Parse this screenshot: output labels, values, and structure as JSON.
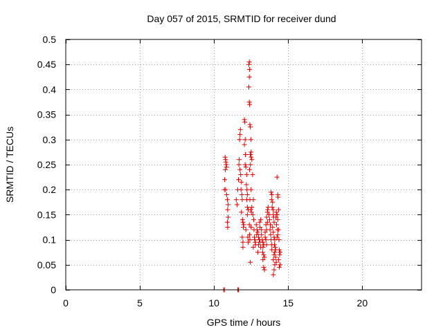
{
  "chart_data": {
    "type": "scatter",
    "title": "Day 057 of 2015, SRMTID for receiver dund",
    "xlabel": "GPS time / hours",
    "ylabel": "SRMTID / TECUs",
    "xlim": [
      0,
      24
    ],
    "ylim": [
      0,
      0.5
    ],
    "xticks": [
      0,
      5,
      10,
      15,
      20
    ],
    "xtick_labels": [
      "0",
      "5",
      "10",
      "15",
      "20"
    ],
    "yticks": [
      0,
      0.05,
      0.1,
      0.15,
      0.2,
      0.25,
      0.3,
      0.35,
      0.4,
      0.45,
      0.5
    ],
    "ytick_labels": [
      "0",
      "0.05",
      "0.1",
      "0.15",
      "0.2",
      "0.25",
      "0.3",
      "0.35",
      "0.4",
      "0.45",
      "0.5"
    ],
    "grid": true,
    "marker": "plus",
    "color": "#dd0000",
    "series": [
      {
        "name": "SRMTID",
        "points": [
          [
            10.65,
            0.0
          ],
          [
            10.7,
            0.0
          ],
          [
            11.6,
            0.0
          ],
          [
            11.65,
            0.0
          ],
          [
            10.75,
            0.265
          ],
          [
            10.78,
            0.26
          ],
          [
            10.8,
            0.255
          ],
          [
            10.82,
            0.25
          ],
          [
            10.76,
            0.24
          ],
          [
            10.85,
            0.245
          ],
          [
            10.72,
            0.22
          ],
          [
            10.78,
            0.2
          ],
          [
            10.85,
            0.19
          ],
          [
            10.9,
            0.18
          ],
          [
            10.95,
            0.17
          ],
          [
            10.92,
            0.16
          ],
          [
            10.95,
            0.145
          ],
          [
            10.9,
            0.135
          ],
          [
            10.92,
            0.125
          ],
          [
            10.7,
            0.2
          ],
          [
            11.5,
            0.18
          ],
          [
            11.55,
            0.17
          ],
          [
            11.6,
            0.2
          ],
          [
            11.65,
            0.22
          ],
          [
            11.68,
            0.25
          ],
          [
            11.7,
            0.26
          ],
          [
            11.72,
            0.3
          ],
          [
            11.75,
            0.31
          ],
          [
            11.78,
            0.32
          ],
          [
            11.75,
            0.24
          ],
          [
            11.8,
            0.23
          ],
          [
            11.85,
            0.215
          ],
          [
            11.82,
            0.2
          ],
          [
            11.88,
            0.19
          ],
          [
            11.9,
            0.18
          ],
          [
            11.85,
            0.155
          ],
          [
            11.92,
            0.14
          ],
          [
            11.95,
            0.135
          ],
          [
            12.0,
            0.13
          ],
          [
            11.9,
            0.105
          ],
          [
            11.95,
            0.095
          ],
          [
            11.95,
            0.085
          ],
          [
            11.98,
            0.125
          ],
          [
            12.05,
            0.34
          ],
          [
            12.08,
            0.335
          ],
          [
            12.1,
            0.3
          ],
          [
            12.05,
            0.29
          ],
          [
            12.12,
            0.27
          ],
          [
            12.1,
            0.25
          ],
          [
            12.15,
            0.245
          ],
          [
            12.2,
            0.23
          ],
          [
            12.18,
            0.21
          ],
          [
            12.22,
            0.2
          ],
          [
            12.25,
            0.19
          ],
          [
            12.2,
            0.18
          ],
          [
            12.25,
            0.165
          ],
          [
            12.3,
            0.16
          ],
          [
            12.25,
            0.15
          ],
          [
            12.15,
            0.12
          ],
          [
            12.28,
            0.105
          ],
          [
            12.3,
            0.095
          ],
          [
            12.35,
            0.45
          ],
          [
            12.38,
            0.455
          ],
          [
            12.4,
            0.44
          ],
          [
            12.38,
            0.425
          ],
          [
            12.35,
            0.405
          ],
          [
            12.38,
            0.375
          ],
          [
            12.4,
            0.37
          ],
          [
            12.42,
            0.33
          ],
          [
            12.45,
            0.325
          ],
          [
            12.48,
            0.3
          ],
          [
            12.5,
            0.275
          ],
          [
            12.45,
            0.27
          ],
          [
            12.5,
            0.265
          ],
          [
            12.55,
            0.26
          ],
          [
            12.45,
            0.25
          ],
          [
            12.4,
            0.24
          ],
          [
            12.5,
            0.2
          ],
          [
            12.42,
            0.18
          ],
          [
            12.55,
            0.165
          ],
          [
            12.48,
            0.16
          ],
          [
            12.52,
            0.155
          ],
          [
            12.38,
            0.13
          ],
          [
            12.4,
            0.11
          ],
          [
            12.5,
            0.125
          ],
          [
            12.42,
            0.1
          ],
          [
            12.45,
            0.055
          ],
          [
            12.6,
            0.23
          ],
          [
            12.65,
            0.18
          ],
          [
            12.62,
            0.15
          ],
          [
            12.68,
            0.14
          ],
          [
            12.7,
            0.12
          ],
          [
            12.72,
            0.105
          ],
          [
            12.75,
            0.1
          ],
          [
            12.78,
            0.095
          ],
          [
            12.8,
            0.09
          ],
          [
            12.65,
            0.085
          ],
          [
            12.85,
            0.13
          ],
          [
            12.9,
            0.12
          ],
          [
            12.88,
            0.11
          ],
          [
            12.95,
            0.115
          ],
          [
            13.0,
            0.105
          ],
          [
            13.05,
            0.1
          ],
          [
            13.1,
            0.095
          ],
          [
            13.0,
            0.09
          ],
          [
            13.15,
            0.085
          ],
          [
            12.95,
            0.075
          ],
          [
            13.08,
            0.135
          ],
          [
            13.1,
            0.125
          ],
          [
            13.2,
            0.12
          ],
          [
            13.15,
            0.14
          ],
          [
            13.2,
            0.11
          ],
          [
            13.25,
            0.1
          ],
          [
            13.3,
            0.095
          ],
          [
            13.35,
            0.09
          ],
          [
            13.3,
            0.085
          ],
          [
            13.28,
            0.075
          ],
          [
            13.35,
            0.07
          ],
          [
            13.4,
            0.065
          ],
          [
            13.3,
            0.06
          ],
          [
            13.35,
            0.045
          ],
          [
            13.4,
            0.04
          ],
          [
            13.45,
            0.105
          ],
          [
            13.5,
            0.1
          ],
          [
            13.45,
            0.115
          ],
          [
            13.55,
            0.12
          ],
          [
            13.5,
            0.13
          ],
          [
            13.6,
            0.135
          ],
          [
            13.55,
            0.145
          ],
          [
            13.6,
            0.155
          ],
          [
            13.62,
            0.16
          ],
          [
            13.55,
            0.09
          ],
          [
            13.65,
            0.165
          ],
          [
            13.7,
            0.15
          ],
          [
            13.75,
            0.14
          ],
          [
            13.8,
            0.13
          ],
          [
            13.78,
            0.12
          ],
          [
            13.82,
            0.11
          ],
          [
            13.85,
            0.1
          ],
          [
            13.88,
            0.09
          ],
          [
            13.9,
            0.08
          ],
          [
            13.85,
            0.195
          ],
          [
            13.9,
            0.19
          ],
          [
            13.88,
            0.18
          ],
          [
            13.95,
            0.175
          ],
          [
            13.92,
            0.165
          ],
          [
            13.98,
            0.16
          ],
          [
            14.0,
            0.15
          ],
          [
            14.02,
            0.145
          ],
          [
            14.05,
            0.135
          ],
          [
            13.95,
            0.125
          ],
          [
            14.0,
            0.115
          ],
          [
            14.05,
            0.105
          ],
          [
            14.1,
            0.1
          ],
          [
            14.08,
            0.09
          ],
          [
            14.12,
            0.085
          ],
          [
            14.15,
            0.08
          ],
          [
            14.1,
            0.075
          ],
          [
            14.05,
            0.07
          ],
          [
            14.0,
            0.06
          ],
          [
            14.1,
            0.05
          ],
          [
            14.05,
            0.04
          ],
          [
            14.0,
            0.03
          ],
          [
            14.15,
            0.065
          ],
          [
            14.2,
            0.055
          ],
          [
            14.18,
            0.145
          ],
          [
            14.2,
            0.155
          ],
          [
            14.25,
            0.15
          ],
          [
            14.22,
            0.13
          ],
          [
            14.28,
            0.12
          ],
          [
            14.3,
            0.11
          ],
          [
            14.25,
            0.105
          ],
          [
            14.3,
            0.19
          ],
          [
            14.32,
            0.185
          ],
          [
            14.25,
            0.225
          ],
          [
            14.35,
            0.16
          ],
          [
            14.3,
            0.14
          ],
          [
            14.35,
            0.12
          ],
          [
            14.38,
            0.1
          ],
          [
            14.4,
            0.08
          ],
          [
            14.42,
            0.07
          ],
          [
            14.35,
            0.06
          ],
          [
            14.45,
            0.05
          ],
          [
            14.4,
            0.045
          ],
          [
            14.45,
            0.075
          ]
        ]
      }
    ]
  }
}
